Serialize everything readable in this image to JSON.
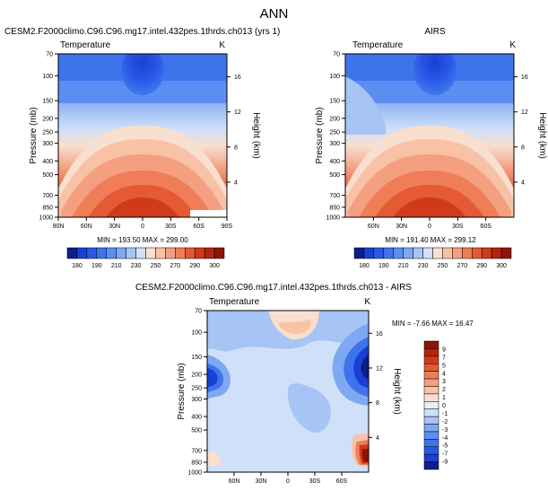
{
  "page": {
    "title": "ANN"
  },
  "colors": {
    "temperature_scale": [
      "#0a1f8c",
      "#1a3fd4",
      "#2a58e6",
      "#3d74ec",
      "#5b8ef0",
      "#7ea8f2",
      "#a6c4f4",
      "#cfe0f8",
      "#f9dfcf",
      "#f8c2a6",
      "#f4a080",
      "#ee7d58",
      "#e35a33",
      "#cf3a1c",
      "#b22410",
      "#8f1406"
    ],
    "difference_scale": [
      "#0a1f8c",
      "#1a3fd4",
      "#2a58e6",
      "#3d74ec",
      "#5b8ef0",
      "#7ea8f2",
      "#a6c4f4",
      "#cfe0f8",
      "#e8eff9",
      "#f9dfcf",
      "#f8c2a6",
      "#f4a080",
      "#ee7d58",
      "#e35a33",
      "#cf3a1c",
      "#b22410",
      "#8f1406"
    ]
  },
  "chart_data": [
    {
      "id": "model",
      "type": "heatmap",
      "title": "CESM2.F2000climo.C96.C96.mg17.intel.432pes.1thrds.ch013 (yrs 1)",
      "left_title": "Temperature",
      "right_title": "K",
      "xlabel": "",
      "ylabel": "Pressure (mb)",
      "y2label": "Height (km)",
      "x_ticks": [
        "90N",
        "60N",
        "30N",
        "0",
        "30S",
        "60S",
        "90S"
      ],
      "x_values": [
        90,
        60,
        30,
        0,
        -30,
        -60,
        -90
      ],
      "xlim": [
        90,
        -90
      ],
      "y_ticks": [
        70,
        100,
        150,
        200,
        250,
        300,
        400,
        500,
        700,
        850,
        1000
      ],
      "ylim": [
        70,
        1000
      ],
      "y2_ticks": [
        4,
        8,
        12,
        16
      ],
      "min": 193.5,
      "max": 299.0,
      "stats_text": "MIN = 193.50   MAX = 299.00",
      "levels": [
        180,
        190,
        200,
        210,
        220,
        230,
        240,
        250,
        260,
        270,
        280,
        290,
        300
      ],
      "colorbar_labels": [
        "180",
        "190",
        "210",
        "230",
        "250",
        "270",
        "290",
        "300"
      ]
    },
    {
      "id": "obs",
      "type": "heatmap",
      "title": "AIRS",
      "left_title": "Temperature",
      "right_title": "K",
      "xlabel": "",
      "ylabel": "Pressure (mb)",
      "y2label": "Height (km)",
      "x_ticks": [
        "60N",
        "30N",
        "0",
        "30S",
        "60S"
      ],
      "x_values": [
        60,
        30,
        0,
        -30,
        -60
      ],
      "xlim": [
        90,
        -90
      ],
      "y_ticks": [
        70,
        100,
        150,
        200,
        250,
        300,
        400,
        500,
        700,
        850,
        1000
      ],
      "ylim": [
        70,
        1000
      ],
      "y2_ticks": [
        4,
        8,
        12,
        16
      ],
      "min": 191.4,
      "max": 299.12,
      "stats_text": "MIN = 191.40   MAX = 299.12",
      "levels": [
        180,
        190,
        200,
        210,
        220,
        230,
        240,
        250,
        260,
        270,
        280,
        290,
        300
      ],
      "colorbar_labels": [
        "180",
        "190",
        "210",
        "230",
        "250",
        "270",
        "290",
        "300"
      ]
    },
    {
      "id": "diff",
      "type": "heatmap",
      "title": "CESM2.F2000climo.C96.C96.mg17.intel.432pes.1thrds.ch013 - AIRS",
      "left_title": "Temperature",
      "right_title": "K",
      "xlabel": "",
      "ylabel": "Pressure (mb)",
      "y2label": "Height (km)",
      "x_ticks": [
        "60N",
        "30N",
        "0",
        "30S",
        "60S"
      ],
      "x_values": [
        60,
        30,
        0,
        -30,
        -60
      ],
      "xlim": [
        90,
        -90
      ],
      "y_ticks": [
        70,
        100,
        150,
        200,
        250,
        300,
        400,
        500,
        700,
        850,
        1000
      ],
      "ylim": [
        70,
        1000
      ],
      "y2_ticks": [
        4,
        8,
        12,
        16
      ],
      "min": -7.66,
      "max": 16.47,
      "stats_text": "MIN = -7.66   MAX = 16.47",
      "levels": [
        -9,
        -7,
        -6,
        -5,
        -4,
        -3,
        -2,
        -1,
        0,
        1,
        2,
        3,
        4,
        5,
        7,
        9
      ],
      "colorbar_labels": [
        "9",
        "7",
        "5",
        "4",
        "3",
        "2",
        "1",
        "0",
        "-1",
        "-2",
        "-3",
        "-4",
        "-5",
        "-7",
        "-9"
      ]
    }
  ]
}
